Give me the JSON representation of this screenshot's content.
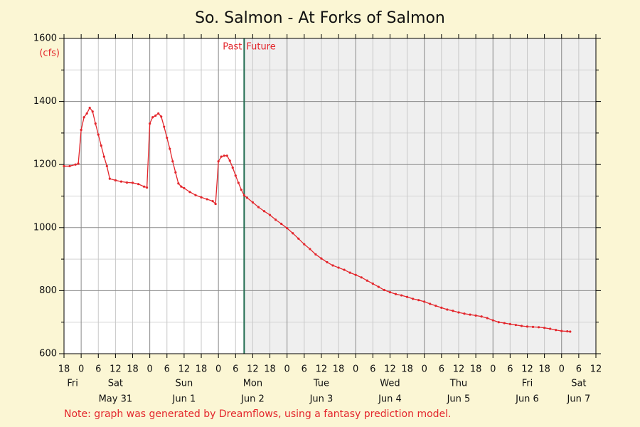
{
  "chart_data": {
    "type": "line",
    "title": "So. Salmon - At Forks of Salmon",
    "y_label": "(cfs)",
    "past_label": "Past",
    "future_label": "Future",
    "divider_x": 63,
    "note": "Note: graph was generated by Dreamflows, using a fantasy prediction model.",
    "color": "#e3262c",
    "x": [
      0,
      2,
      4,
      5,
      6,
      7,
      8,
      9,
      10,
      11,
      12,
      13,
      14,
      15,
      16,
      18,
      20,
      22,
      24,
      26,
      28,
      29,
      30,
      31,
      32,
      33,
      34,
      35,
      36,
      37,
      38,
      39,
      40,
      41,
      42,
      44,
      46,
      48,
      50,
      52,
      53,
      54,
      55,
      56,
      57,
      58,
      59,
      60,
      61,
      62,
      63,
      64,
      66,
      68,
      70,
      72,
      74,
      76,
      78,
      80,
      82,
      84,
      86,
      88,
      90,
      92,
      94,
      96,
      98,
      100,
      102,
      104,
      106,
      108,
      110,
      112,
      114,
      116,
      118,
      120,
      122,
      124,
      126,
      128,
      130,
      132,
      134,
      136,
      138,
      140,
      142,
      144,
      146,
      148,
      150,
      152,
      154,
      156,
      158,
      160,
      162,
      164,
      166,
      168,
      170,
      172,
      174,
      176,
      177
    ],
    "values": [
      1195,
      1195,
      1200,
      1203,
      1310,
      1350,
      1362,
      1380,
      1368,
      1330,
      1295,
      1260,
      1225,
      1195,
      1155,
      1150,
      1146,
      1143,
      1142,
      1138,
      1130,
      1127,
      1330,
      1350,
      1355,
      1362,
      1352,
      1320,
      1285,
      1250,
      1210,
      1175,
      1140,
      1130,
      1125,
      1113,
      1103,
      1096,
      1090,
      1084,
      1075,
      1210,
      1225,
      1228,
      1228,
      1212,
      1190,
      1165,
      1142,
      1120,
      1102,
      1095,
      1080,
      1065,
      1052,
      1040,
      1025,
      1012,
      998,
      982,
      965,
      947,
      932,
      915,
      902,
      890,
      880,
      873,
      866,
      857,
      850,
      842,
      832,
      822,
      812,
      802,
      795,
      789,
      785,
      780,
      774,
      770,
      765,
      758,
      752,
      746,
      740,
      736,
      731,
      727,
      724,
      721,
      718,
      713,
      706,
      700,
      697,
      694,
      691,
      688,
      686,
      685,
      684,
      682,
      679,
      675,
      672,
      671,
      670
    ],
    "xlim": [
      0,
      186
    ],
    "xticks": [
      {
        "value": 0,
        "label": "18"
      },
      {
        "value": 6,
        "label": "0"
      },
      {
        "value": 12,
        "label": "6"
      },
      {
        "value": 18,
        "label": "12"
      },
      {
        "value": 24,
        "label": "18"
      },
      {
        "value": 30,
        "label": "0"
      },
      {
        "value": 36,
        "label": "6"
      },
      {
        "value": 42,
        "label": "12"
      },
      {
        "value": 48,
        "label": "18"
      },
      {
        "value": 54,
        "label": "0"
      },
      {
        "value": 60,
        "label": "6"
      },
      {
        "value": 66,
        "label": "12"
      },
      {
        "value": 72,
        "label": "18"
      },
      {
        "value": 78,
        "label": "0"
      },
      {
        "value": 84,
        "label": "6"
      },
      {
        "value": 90,
        "label": "12"
      },
      {
        "value": 96,
        "label": "18"
      },
      {
        "value": 102,
        "label": "0"
      },
      {
        "value": 108,
        "label": "6"
      },
      {
        "value": 114,
        "label": "12"
      },
      {
        "value": 120,
        "label": "18"
      },
      {
        "value": 126,
        "label": "0"
      },
      {
        "value": 132,
        "label": "6"
      },
      {
        "value": 138,
        "label": "12"
      },
      {
        "value": 144,
        "label": "18"
      },
      {
        "value": 150,
        "label": "0"
      },
      {
        "value": 156,
        "label": "6"
      },
      {
        "value": 162,
        "label": "12"
      },
      {
        "value": 168,
        "label": "18"
      },
      {
        "value": 174,
        "label": "0"
      },
      {
        "value": 180,
        "label": "6"
      },
      {
        "value": 186,
        "label": "12"
      }
    ],
    "day_labels": [
      {
        "value": 3,
        "day": "Fri",
        "date": null
      },
      {
        "value": 18,
        "day": "Sat",
        "date": "May 31"
      },
      {
        "value": 42,
        "day": "Sun",
        "date": "Jun 1"
      },
      {
        "value": 66,
        "day": "Mon",
        "date": "Jun 2"
      },
      {
        "value": 90,
        "day": "Tue",
        "date": "Jun 3"
      },
      {
        "value": 114,
        "day": "Wed",
        "date": "Jun 4"
      },
      {
        "value": 138,
        "day": "Thu",
        "date": "Jun 5"
      },
      {
        "value": 162,
        "day": "Fri",
        "date": "Jun 6"
      },
      {
        "value": 180,
        "day": "Sat",
        "date": "Jun 7"
      }
    ],
    "ylim": [
      600,
      1600
    ],
    "yticks": [
      600,
      800,
      1000,
      1200,
      1400,
      1600
    ],
    "y_minor_ticks": [
      700,
      900,
      1100,
      1300,
      1500
    ],
    "grid": true
  }
}
